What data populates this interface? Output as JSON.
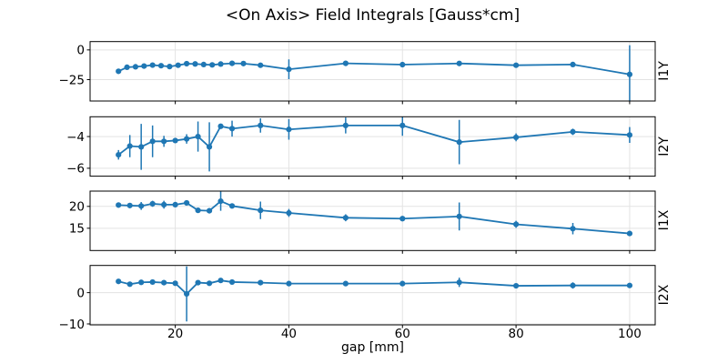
{
  "title": "<On Axis> Field Integrals [Gauss*cm]",
  "accent_color": "#1f77b4",
  "grid_color": "#e3e3e3",
  "spine_color": "#000000",
  "chart_data": {
    "type": "line",
    "title": "<On Axis> Field Integrals [Gauss*cm]",
    "xlabel": "gap [mm]",
    "ylabel": "",
    "xlim": [
      5,
      104.5
    ],
    "xticks": [
      20,
      40,
      60,
      80,
      100
    ],
    "grid": true,
    "legend": "none",
    "marker": "circle",
    "error_bars": true,
    "series_color": "#1f77b4",
    "subplots": [
      {
        "label": "I1Y",
        "ylim": [
          -43,
          7
        ],
        "yticks": [
          0,
          -25
        ],
        "x": [
          10,
          11.5,
          13,
          14.5,
          16,
          17.5,
          19,
          20.5,
          22,
          23.5,
          25,
          26.5,
          28,
          30,
          32,
          35,
          40,
          50,
          60,
          70,
          80,
          90,
          100
        ],
        "y": [
          -18.0,
          -14.6,
          -14.2,
          -13.6,
          -12.8,
          -13.3,
          -14.0,
          -12.9,
          -11.6,
          -11.8,
          -12.3,
          -12.6,
          -11.9,
          -11.3,
          -11.5,
          -12.9,
          -16.3,
          -11.3,
          -12.4,
          -11.4,
          -12.9,
          -12.3,
          -20.6
        ],
        "yerr": [
          0.8,
          0.4,
          0.4,
          0.4,
          0.4,
          0.4,
          0.4,
          0.4,
          0.4,
          0.4,
          0.4,
          0.4,
          0.4,
          0.4,
          0.4,
          0.9,
          8.3,
          0.7,
          0.9,
          0.9,
          0.6,
          0.7,
          24.5
        ]
      },
      {
        "label": "I2Y",
        "ylim": [
          -6.5,
          -2.75
        ],
        "yticks": [
          -4,
          -6
        ],
        "x": [
          10,
          12,
          14,
          16,
          18,
          20,
          22,
          24,
          26,
          28,
          30,
          35,
          40,
          50,
          60,
          70,
          80,
          90,
          100
        ],
        "y": [
          -5.15,
          -4.6,
          -4.65,
          -4.3,
          -4.3,
          -4.25,
          -4.15,
          -4.0,
          -4.65,
          -3.35,
          -3.5,
          -3.3,
          -3.55,
          -3.3,
          -3.3,
          -4.35,
          -4.05,
          -3.7,
          -3.9
        ],
        "yerr": [
          0.3,
          0.7,
          1.45,
          1.0,
          0.35,
          0.15,
          0.3,
          0.95,
          1.55,
          0.15,
          0.5,
          0.45,
          0.65,
          0.5,
          0.65,
          1.4,
          0.25,
          0.2,
          0.5
        ]
      },
      {
        "label": "I1X",
        "ylim": [
          9.9,
          23.5
        ],
        "yticks": [
          20,
          15
        ],
        "x": [
          10,
          12,
          14,
          16,
          18,
          20,
          22,
          24,
          26,
          28,
          30,
          35,
          40,
          50,
          60,
          70,
          80,
          90,
          100
        ],
        "y": [
          20.3,
          20.2,
          20.1,
          20.6,
          20.4,
          20.4,
          20.8,
          19.1,
          19.0,
          21.2,
          20.1,
          19.1,
          18.5,
          17.4,
          17.2,
          17.7,
          15.9,
          14.9,
          13.8
        ],
        "yerr": [
          0.5,
          0.4,
          0.9,
          0.7,
          0.9,
          0.5,
          0.4,
          0.3,
          0.3,
          2.2,
          0.4,
          2.0,
          0.9,
          0.8,
          0.3,
          3.2,
          0.8,
          1.3,
          0.6
        ]
      },
      {
        "label": "I2X",
        "ylim": [
          -10.3,
          8.7
        ],
        "yticks": [
          0,
          -10
        ],
        "x": [
          10,
          12,
          14,
          16,
          18,
          20,
          22,
          24,
          26,
          28,
          30,
          35,
          40,
          50,
          60,
          70,
          80,
          90,
          100
        ],
        "y": [
          3.6,
          2.7,
          3.3,
          3.4,
          3.2,
          3.0,
          -0.4,
          3.2,
          3.0,
          3.9,
          3.4,
          3.2,
          2.9,
          2.9,
          2.9,
          3.3,
          2.2,
          2.3,
          2.3
        ],
        "yerr": [
          0.4,
          0.3,
          0.3,
          0.3,
          0.3,
          0.3,
          8.8,
          0.3,
          0.3,
          0.5,
          0.3,
          0.3,
          0.3,
          0.3,
          0.3,
          1.5,
          0.4,
          1.0,
          0.3
        ]
      }
    ]
  }
}
